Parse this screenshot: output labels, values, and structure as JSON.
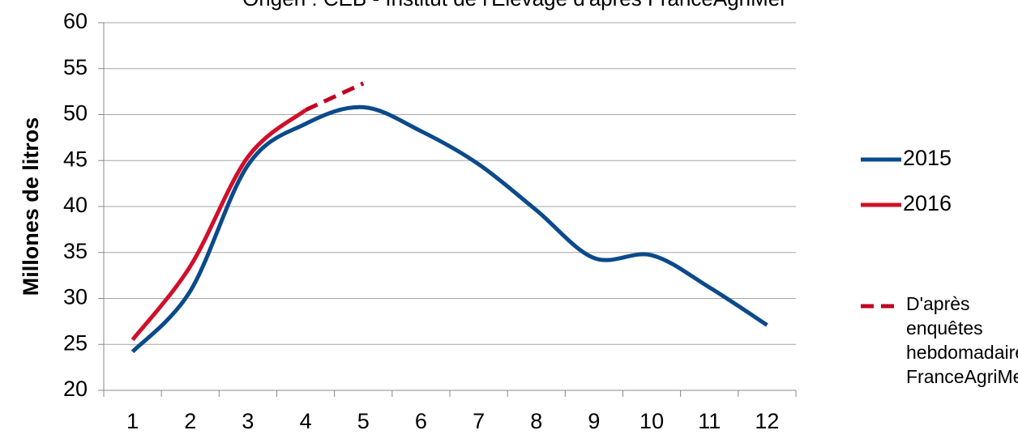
{
  "chart_data": {
    "type": "line",
    "title": "Origen : CEB - Institut de l'Elevage d'après FranceAgriMer",
    "y_label": "Millones de litros",
    "categories": [
      "1",
      "2",
      "3",
      "4",
      "5",
      "6",
      "7",
      "8",
      "9",
      "10",
      "11",
      "12"
    ],
    "series": [
      {
        "name": "2015",
        "color": "#0b4a8b",
        "dash": false,
        "values": [
          24.2,
          30.8,
          44.5,
          49.0,
          50.8,
          48.2,
          44.6,
          39.6,
          34.4,
          34.7,
          31.2,
          27.1
        ]
      },
      {
        "name": "2016",
        "color": "#d0102a",
        "dash": false,
        "values": [
          25.5,
          33.5,
          45.4,
          50.5,
          null,
          null,
          null,
          null,
          null,
          null,
          null,
          null
        ]
      },
      {
        "name": "D'après enquêtes hebdomadaires FranceAgriMer",
        "color": "#c00020",
        "dash": true,
        "values": [
          null,
          null,
          null,
          50.5,
          53.4,
          null,
          null,
          null,
          null,
          null,
          null,
          null
        ]
      }
    ],
    "ylim": [
      20,
      60
    ],
    "yticks": [
      20,
      25,
      30,
      35,
      40,
      45,
      50,
      55,
      60
    ],
    "grid": true
  }
}
